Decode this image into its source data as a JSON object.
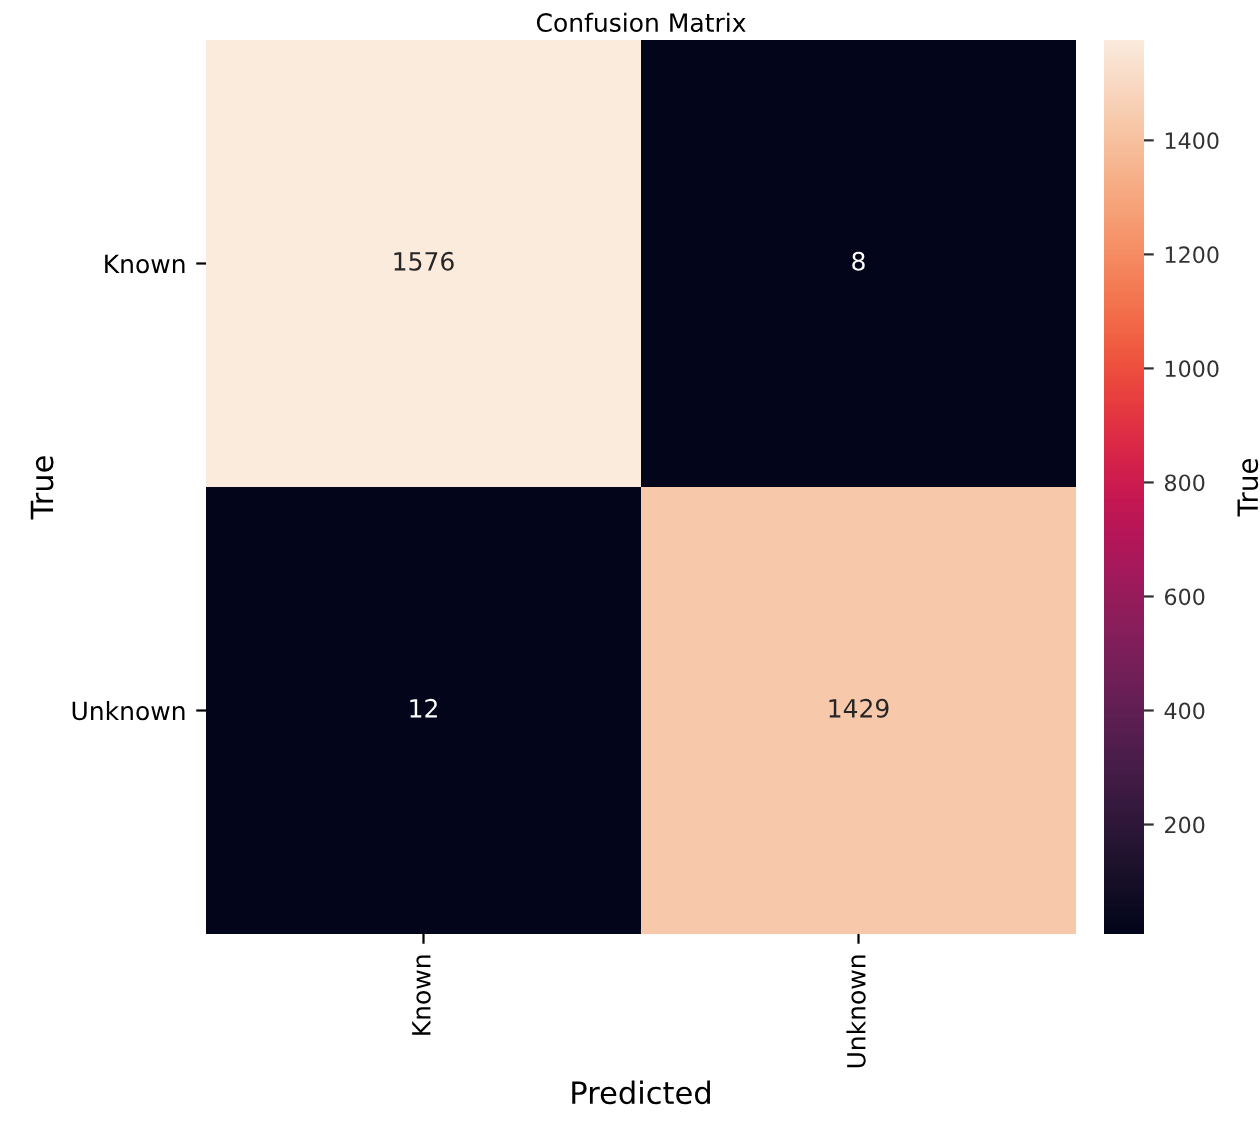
{
  "chart_data": {
    "type": "heatmap",
    "title": "Confusion Matrix",
    "xlabel": "Predicted",
    "ylabel": "True",
    "clabel": "True",
    "categories": [
      "Known",
      "Unknown"
    ],
    "y_categories": [
      "Known",
      "Unknown"
    ],
    "cells": [
      [
        1576,
        8
      ],
      [
        12,
        1429
      ]
    ],
    "clim": [
      8,
      1576
    ],
    "cticks": [
      200,
      400,
      600,
      800,
      1000,
      1200,
      1400
    ],
    "data_labels": true
  }
}
